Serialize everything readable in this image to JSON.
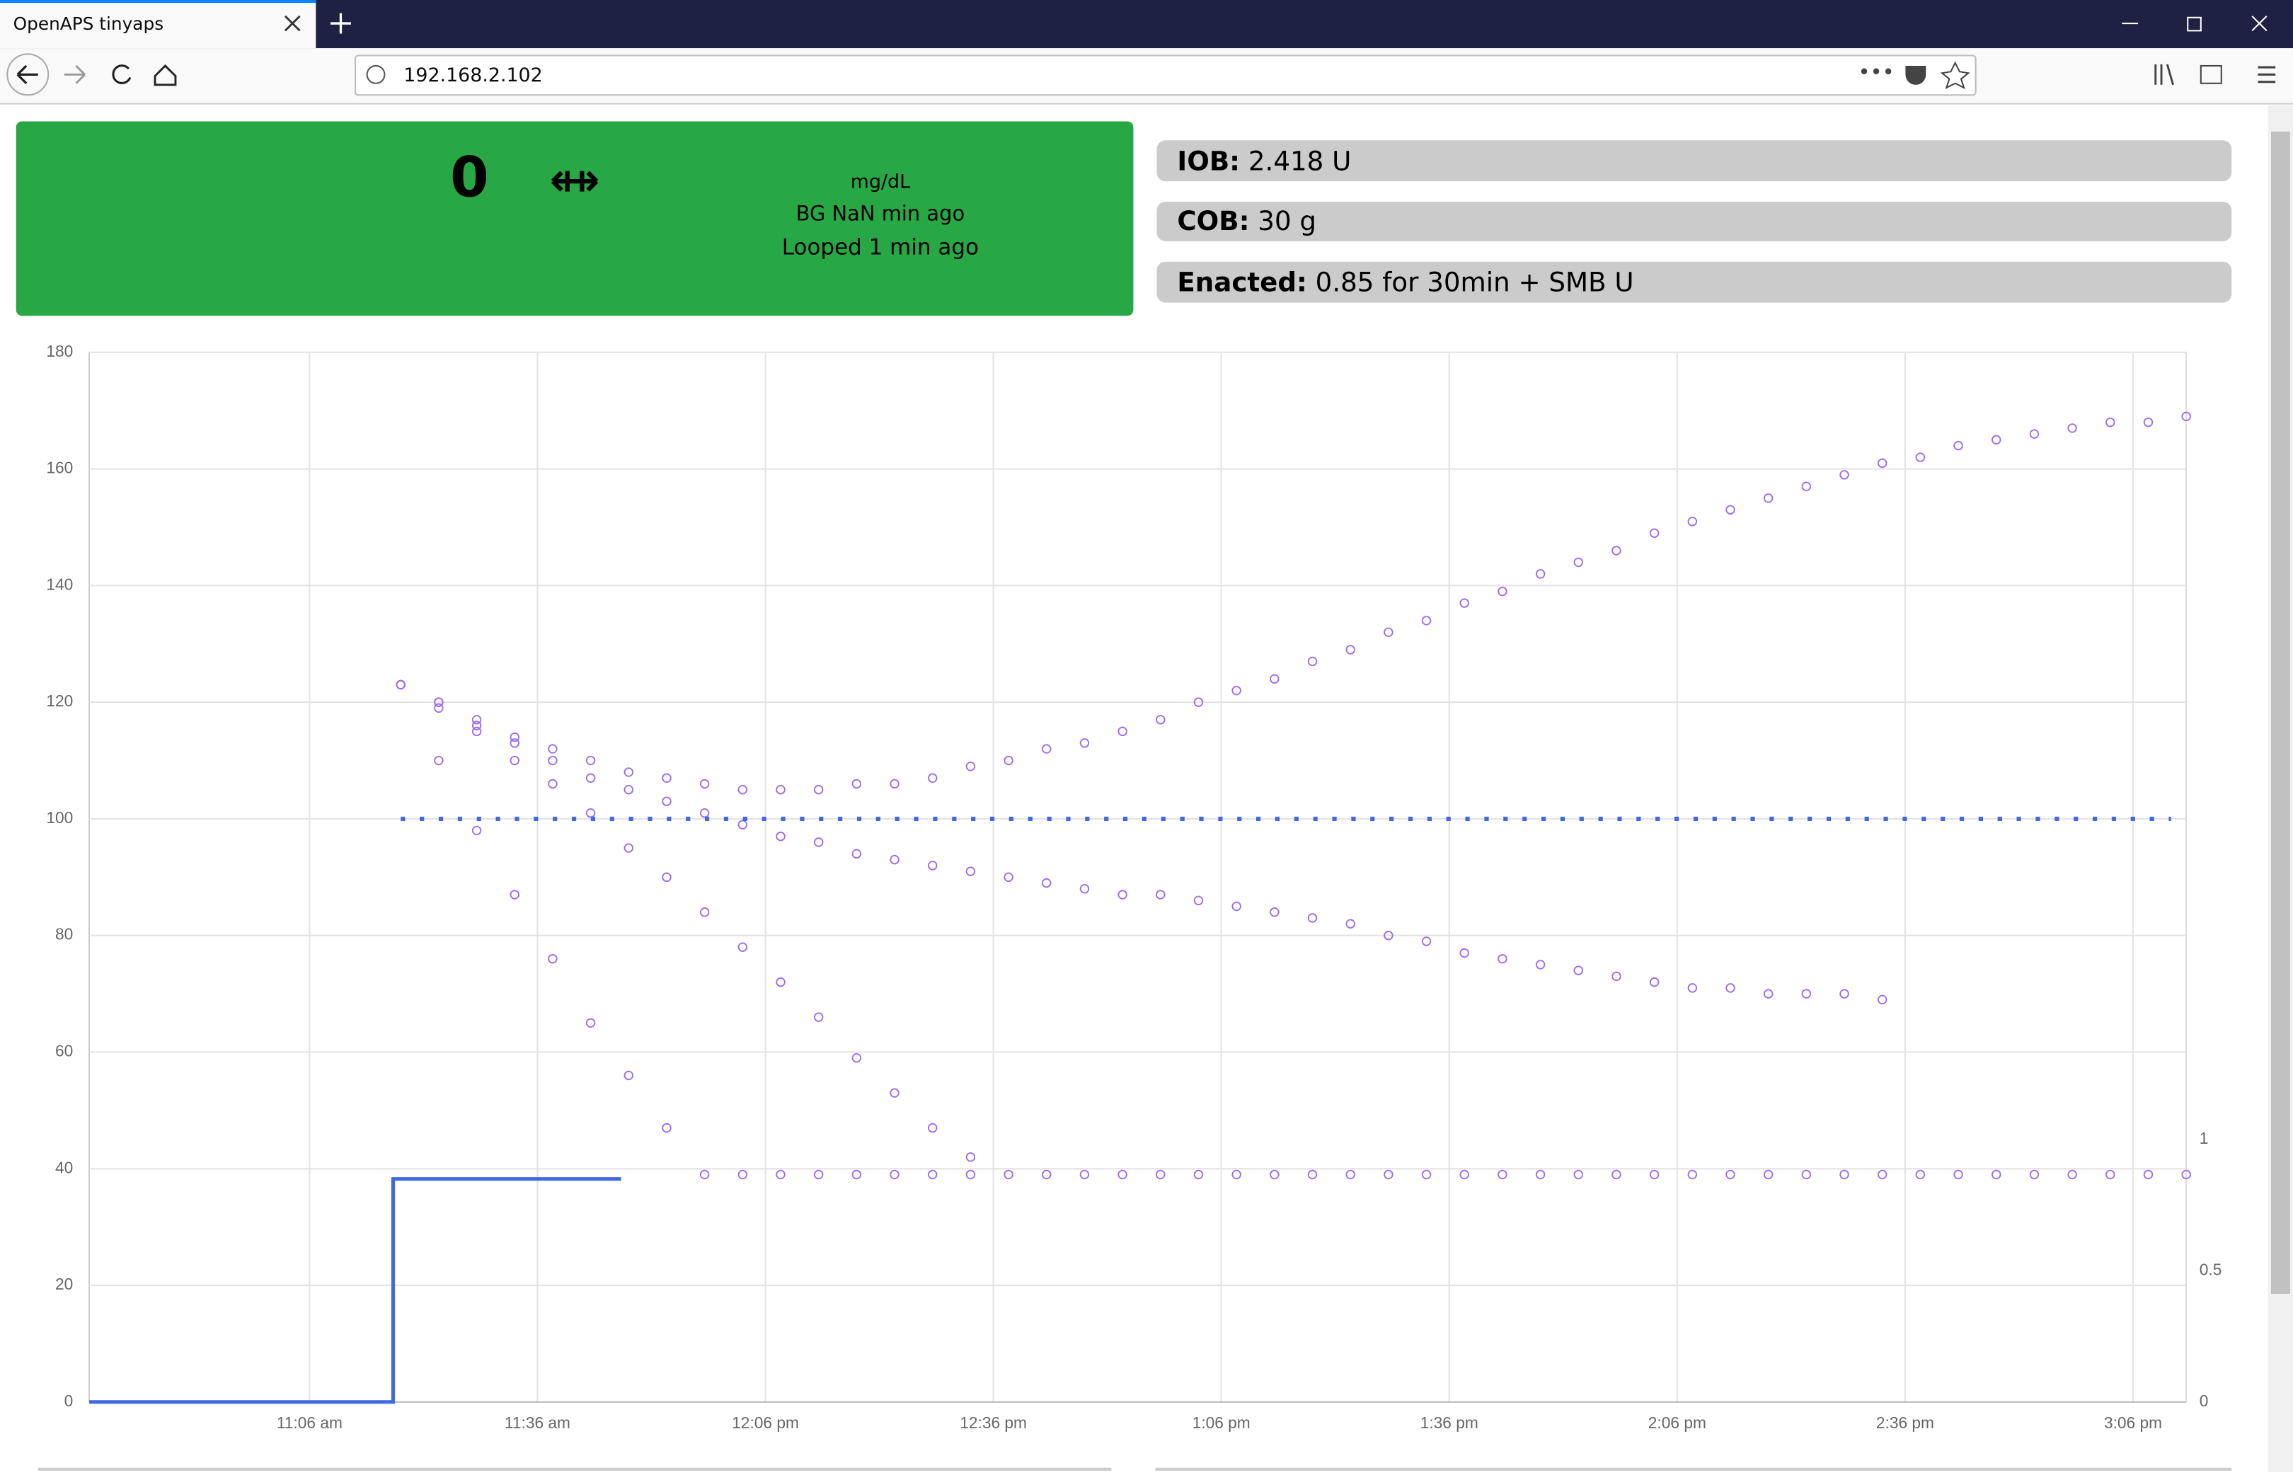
{
  "browser": {
    "tab_title": "OpenAPS tinyaps",
    "url": "192.168.2.102"
  },
  "status": {
    "bg": "0",
    "units": "mg/dL",
    "bg_age": "BG NaN min ago",
    "loop_age": "Looped 1 min ago",
    "iob_label": "IOB:",
    "iob_value": "2.418 U",
    "cob_label": "COB:",
    "cob_value": "30 g",
    "enacted_label": "Enacted:",
    "enacted_value": "0.85 for 30min + SMB U"
  },
  "chart_data": {
    "type": "scatter",
    "x": [
      "11:18",
      "11:23",
      "11:28",
      "11:33",
      "11:38",
      "11:43",
      "11:48",
      "11:53",
      "11:58",
      "12:03",
      "12:08",
      "12:13",
      "12:18",
      "12:23",
      "12:28",
      "12:33",
      "12:38",
      "12:43",
      "12:48",
      "12:53",
      "12:58",
      "13:03",
      "13:08",
      "13:13",
      "13:18",
      "13:23",
      "13:28",
      "13:33",
      "13:38",
      "13:43",
      "13:48",
      "13:53",
      "13:58",
      "14:03",
      "14:08",
      "14:13",
      "14:18",
      "14:23",
      "14:28",
      "14:33",
      "14:38",
      "14:43",
      "14:48",
      "14:53",
      "14:58",
      "15:03",
      "15:08",
      "15:13"
    ],
    "series": [
      {
        "color": "#9d6bf0",
        "values": [
          123,
          120,
          117,
          114,
          112,
          110,
          108,
          107,
          106,
          105,
          105,
          105,
          106,
          106,
          107,
          109,
          110,
          112,
          113,
          115,
          117,
          120,
          122,
          124,
          127,
          129,
          132,
          134,
          137,
          139,
          142,
          144,
          146,
          149,
          151,
          153,
          155,
          157,
          159,
          161,
          162,
          164,
          165,
          166,
          167,
          168,
          168,
          169
        ]
      },
      {
        "color": "#9d6bf0",
        "values": [
          123,
          120,
          116,
          113,
          110,
          107,
          105,
          103,
          101,
          99,
          97,
          96,
          94,
          93,
          92,
          91,
          90,
          89,
          88,
          87,
          87,
          86,
          85,
          84,
          83,
          82,
          80,
          79,
          77,
          76,
          75,
          74,
          73,
          72,
          71,
          71,
          70,
          70,
          70,
          69,
          null,
          null,
          null,
          null,
          null,
          null,
          null,
          null
        ]
      },
      {
        "color": "#9d6bf0",
        "values": [
          123,
          119,
          115,
          110,
          106,
          101,
          95,
          90,
          84,
          78,
          72,
          66,
          59,
          53,
          47,
          42,
          null,
          null,
          null,
          null,
          null,
          null,
          null,
          null,
          null,
          null,
          null,
          null,
          null,
          null,
          null,
          null,
          null,
          null,
          null,
          null,
          null,
          null,
          null,
          null,
          null,
          null,
          null,
          null,
          null,
          null,
          null,
          null
        ]
      },
      {
        "color": "#9d6bf0",
        "values": [
          123,
          110,
          98,
          87,
          76,
          65,
          56,
          47,
          39,
          39,
          39,
          39,
          39,
          39,
          39,
          39,
          39,
          39,
          39,
          39,
          39,
          39,
          39,
          39,
          39,
          39,
          39,
          39,
          39,
          39,
          39,
          39,
          39,
          39,
          39,
          39,
          39,
          39,
          39,
          39,
          39,
          39,
          39,
          39,
          39,
          39,
          39,
          39
        ]
      },
      {
        "type": "dashed-line",
        "color": "#4169e1",
        "x": [
          "11:18",
          "15:11"
        ],
        "values": [
          100,
          100
        ]
      },
      {
        "type": "step",
        "axis": "y2",
        "color": "#4169e1",
        "x": [
          "10:37",
          "11:17",
          "11:47"
        ],
        "values": [
          0,
          0.85,
          0.85
        ]
      }
    ],
    "xlim": [
      "10:37",
      "15:13"
    ],
    "xticks": [
      {
        "value": "11:06",
        "label": "11:06 am"
      },
      {
        "value": "11:36",
        "label": "11:36 am"
      },
      {
        "value": "12:06",
        "label": "12:06 pm"
      },
      {
        "value": "12:36",
        "label": "12:36 pm"
      },
      {
        "value": "13:06",
        "label": "1:06 pm"
      },
      {
        "value": "13:36",
        "label": "1:36 pm"
      },
      {
        "value": "14:06",
        "label": "2:06 pm"
      },
      {
        "value": "14:36",
        "label": "2:36 pm"
      },
      {
        "value": "15:06",
        "label": "3:06 pm"
      }
    ],
    "ylim": [
      0,
      180
    ],
    "yticks": [
      0,
      20,
      40,
      60,
      80,
      100,
      120,
      140,
      160,
      180
    ],
    "y2lim": [
      0,
      4
    ],
    "y2ticks": [
      0,
      0.5,
      1
    ],
    "grid": true
  }
}
